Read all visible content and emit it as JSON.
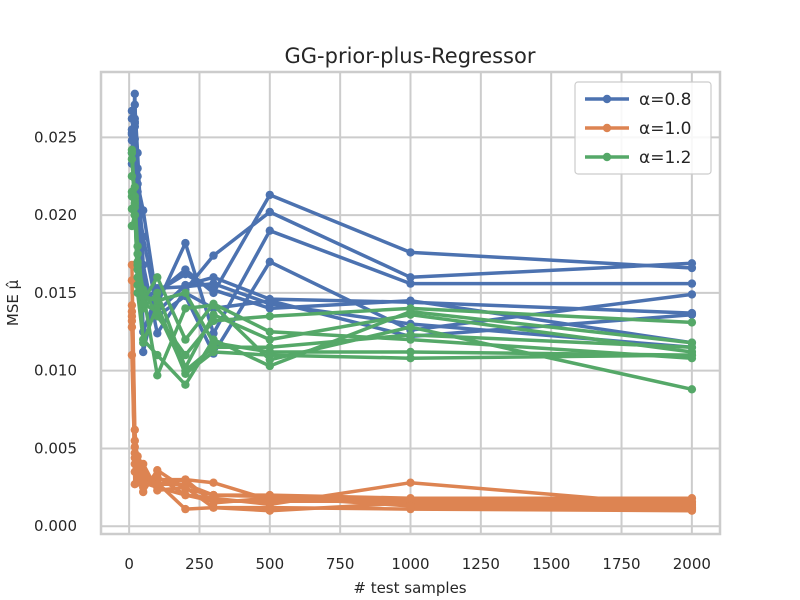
{
  "chart_data": {
    "type": "line",
    "title": "GG-prior-plus-Regressor",
    "xlabel": "# test samples",
    "ylabel": "MSE μ̂",
    "xlim": [
      -100,
      2100
    ],
    "ylim": [
      -0.0005,
      0.0292
    ],
    "xticks": [
      0,
      250,
      500,
      750,
      1000,
      1250,
      1500,
      1750,
      2000
    ],
    "xtick_labels": [
      "0",
      "250",
      "500",
      "750",
      "1000",
      "1250",
      "1500",
      "1750",
      "2000"
    ],
    "yticks": [
      0.0,
      0.005,
      0.01,
      0.015,
      0.02,
      0.025
    ],
    "ytick_labels": [
      "0.000",
      "0.005",
      "0.010",
      "0.015",
      "0.020",
      "0.025"
    ],
    "grid": true,
    "legend_position": "top-right",
    "x": [
      10,
      20,
      30,
      50,
      100,
      200,
      300,
      500,
      1000,
      2000
    ],
    "groups": [
      {
        "name": "α=0.8",
        "color": "#4c72b0",
        "lines": [
          [
            0.0233,
            0.0262,
            0.023,
            0.0125,
            0.015,
            0.0165,
            0.015,
            0.0213,
            0.0176,
            0.0166
          ],
          [
            0.0262,
            0.0271,
            0.024,
            0.0168,
            0.0124,
            0.0152,
            0.0174,
            0.0202,
            0.016,
            0.0169
          ],
          [
            0.0252,
            0.026,
            0.022,
            0.0203,
            0.0143,
            0.0182,
            0.0124,
            0.019,
            0.0156,
            0.0156
          ],
          [
            0.0248,
            0.0243,
            0.0209,
            0.0186,
            0.0138,
            0.0155,
            0.016,
            0.0146,
            0.0144,
            0.0137
          ],
          [
            0.0267,
            0.0257,
            0.0225,
            0.0112,
            0.0151,
            0.0162,
            0.0152,
            0.014,
            0.0145,
            0.0118
          ],
          [
            0.0253,
            0.0249,
            0.0215,
            0.016,
            0.0135,
            0.0148,
            0.0111,
            0.017,
            0.0126,
            0.0149
          ],
          [
            0.024,
            0.0278,
            0.0198,
            0.0144,
            0.0153,
            0.0154,
            0.0156,
            0.0143,
            0.013,
            0.0115
          ],
          [
            0.0255,
            0.0259,
            0.021,
            0.015,
            0.0145,
            0.015,
            0.014,
            0.0145,
            0.0122,
            0.0136
          ]
        ]
      },
      {
        "name": "α=1.0",
        "color": "#dd8452",
        "lines": [
          [
            0.0168,
            0.0062,
            0.004,
            0.0022,
            0.0036,
            0.0024,
            0.002,
            0.002,
            0.0018,
            0.0018
          ],
          [
            0.0158,
            0.0055,
            0.0035,
            0.0025,
            0.003,
            0.003,
            0.0015,
            0.0018,
            0.0015,
            0.0015
          ],
          [
            0.0142,
            0.0051,
            0.003,
            0.003,
            0.0028,
            0.0011,
            0.0012,
            0.001,
            0.0015,
            0.0012
          ],
          [
            0.0135,
            0.0047,
            0.0042,
            0.0028,
            0.0025,
            0.002,
            0.0018,
            0.0014,
            0.0028,
            0.0013
          ],
          [
            0.0132,
            0.0044,
            0.0028,
            0.0035,
            0.0027,
            0.003,
            0.0028,
            0.0017,
            0.0017,
            0.0016
          ],
          [
            0.011,
            0.004,
            0.0033,
            0.004,
            0.0023,
            0.0025,
            0.0012,
            0.0012,
            0.0011,
            0.001
          ],
          [
            0.0128,
            0.0035,
            0.0045,
            0.003,
            0.0032,
            0.002,
            0.0016,
            0.0016,
            0.0016,
            0.0014
          ],
          [
            0.0138,
            0.0027,
            0.0038,
            0.0033,
            0.0027,
            0.0027,
            0.002,
            0.0019,
            0.0013,
            0.0011
          ]
        ]
      },
      {
        "name": "α=1.2",
        "color": "#55a868",
        "lines": [
          [
            0.024,
            0.0207,
            0.016,
            0.015,
            0.0097,
            0.014,
            0.0142,
            0.0107,
            0.0128,
            0.0088
          ],
          [
            0.0212,
            0.021,
            0.018,
            0.0145,
            0.016,
            0.012,
            0.0143,
            0.0125,
            0.012,
            0.0108
          ],
          [
            0.0204,
            0.0212,
            0.015,
            0.012,
            0.011,
            0.0091,
            0.012,
            0.0103,
            0.0138,
            0.0118
          ],
          [
            0.0193,
            0.02,
            0.0165,
            0.014,
            0.015,
            0.0102,
            0.0136,
            0.012,
            0.0136,
            0.0112
          ],
          [
            0.0242,
            0.0208,
            0.0175,
            0.0118,
            0.0142,
            0.0098,
            0.0112,
            0.011,
            0.0108,
            0.011
          ],
          [
            0.0215,
            0.02,
            0.017,
            0.0152,
            0.0135,
            0.011,
            0.0132,
            0.0135,
            0.014,
            0.0131
          ],
          [
            0.0225,
            0.0218,
            0.0155,
            0.0148,
            0.0145,
            0.015,
            0.0118,
            0.0112,
            0.0112,
            0.011
          ],
          [
            0.0236,
            0.0205,
            0.0168,
            0.0143,
            0.0138,
            0.01,
            0.0115,
            0.0115,
            0.0123,
            0.0115
          ]
        ]
      }
    ]
  }
}
